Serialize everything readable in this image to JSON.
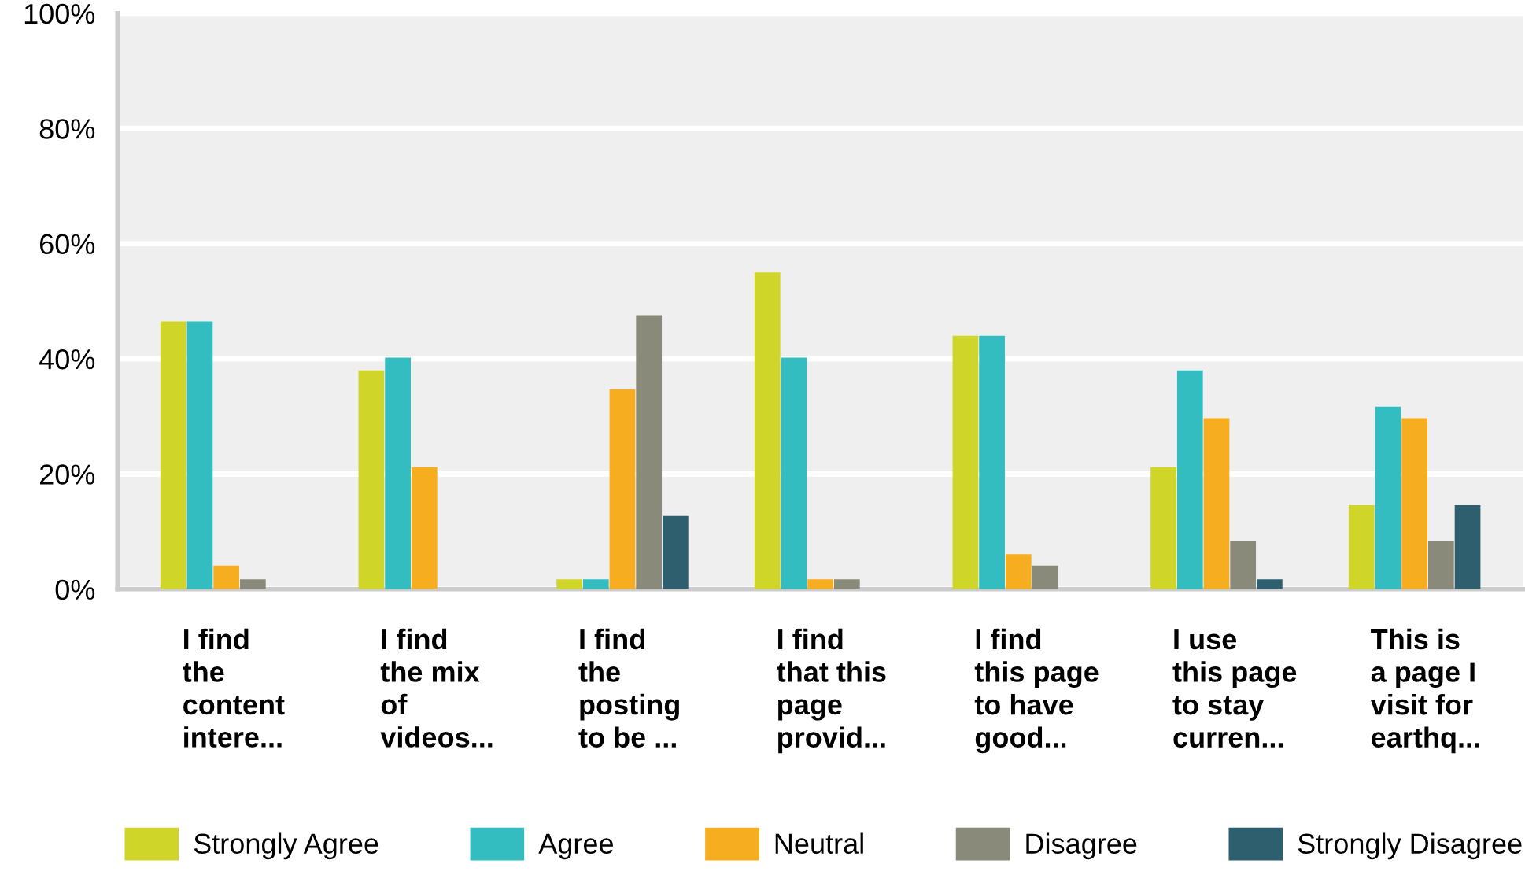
{
  "chart_data": {
    "type": "bar",
    "categories": [
      "I find\nthe\ncontent\nintere...",
      "I find\nthe mix\nof\nvideos...",
      "I find\nthe\nposting\nto be ...",
      "I find\nthat this\npage\nprovid...",
      "I find\nthis page\nto have\ngood...",
      "I use\nthis page\nto stay\ncurren...",
      "This is\na page I\nvisit for\nearthq..."
    ],
    "series": [
      {
        "name": "Strongly Agree",
        "color": "#d0d52a",
        "values": [
          46.5,
          38,
          1.7,
          55,
          44,
          21.2,
          14.6
        ]
      },
      {
        "name": "Agree",
        "color": "#33bdc0",
        "values": [
          46.5,
          40.2,
          1.7,
          40.2,
          44,
          38,
          31.7
        ]
      },
      {
        "name": "Neutral",
        "color": "#f6ae20",
        "values": [
          4.1,
          21.2,
          34.7,
          1.7,
          6.1,
          29.7,
          29.7
        ]
      },
      {
        "name": "Disagree",
        "color": "#8a8a7a",
        "values": [
          1.7,
          0,
          47.6,
          1.7,
          4.1,
          8.3,
          8.3
        ]
      },
      {
        "name": "Strongly Disagree",
        "color": "#2e5f6e",
        "values": [
          0,
          0,
          12.7,
          0,
          0,
          1.7,
          14.6
        ]
      }
    ],
    "ylim": [
      0,
      100
    ],
    "yticks": [
      {
        "value": 0,
        "label": "0%"
      },
      {
        "value": 20,
        "label": "20%"
      },
      {
        "value": 40,
        "label": "40%"
      },
      {
        "value": 60,
        "label": "60%"
      },
      {
        "value": 80,
        "label": "80%"
      },
      {
        "value": 100,
        "label": "100%"
      }
    ],
    "grid": "y",
    "legend": "bottom"
  }
}
